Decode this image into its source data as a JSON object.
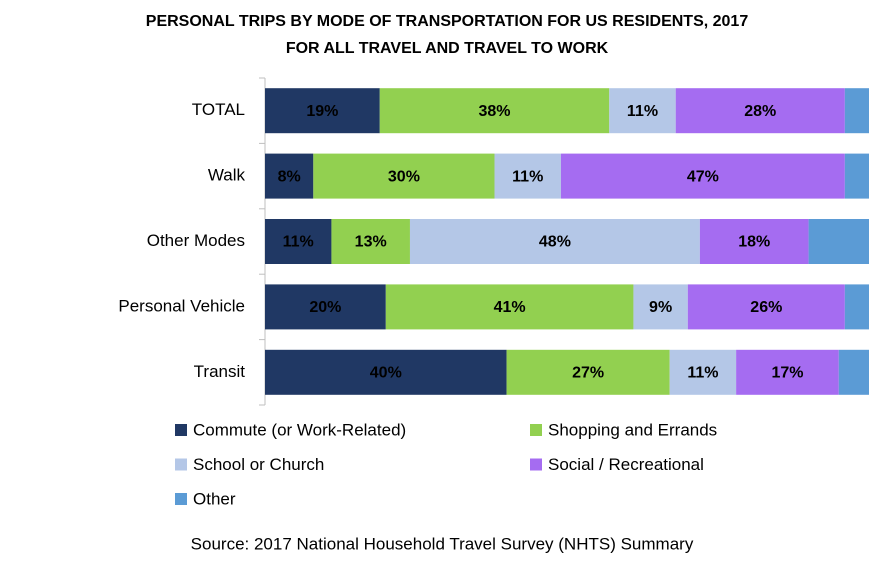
{
  "chart_data": {
    "type": "stacked_bar_horizontal",
    "title": "PERSONAL TRIPS BY MODE OF TRANSPORTATION FOR US RESIDENTS, 2017",
    "subtitle": "FOR ALL TRAVEL AND TRAVEL TO WORK",
    "categories": [
      "TOTAL",
      "Walk",
      "Other Modes",
      "Personal Vehicle",
      "Transit"
    ],
    "xlim": [
      0,
      100
    ],
    "series": [
      {
        "name": "Commute (or Work-Related)",
        "color": "#203864",
        "values": [
          19,
          8,
          11,
          20,
          40
        ],
        "value_labels": [
          "19%",
          "8%",
          "11%",
          "20%",
          "40%"
        ]
      },
      {
        "name": "Shopping and Errands",
        "color": "#92d050",
        "values": [
          38,
          30,
          13,
          41,
          27
        ],
        "value_labels": [
          "38%",
          "30%",
          "13%",
          "41%",
          "27%"
        ]
      },
      {
        "name": "School or Church",
        "color": "#b4c7e7",
        "values": [
          11,
          11,
          48,
          9,
          11
        ],
        "value_labels": [
          "11%",
          "11%",
          "48%",
          "9%",
          "11%"
        ]
      },
      {
        "name": "Social / Recreational",
        "color": "#a56cf1",
        "values": [
          28,
          47,
          18,
          26,
          17
        ],
        "value_labels": [
          "28%",
          "47%",
          "18%",
          "26%",
          "17%"
        ]
      },
      {
        "name": "Other",
        "color": "#5b9bd5",
        "values": [
          4,
          4,
          10,
          4,
          5
        ]
      }
    ],
    "source": "Source: 2017 National Household Travel Survey (NHTS) Summary"
  }
}
